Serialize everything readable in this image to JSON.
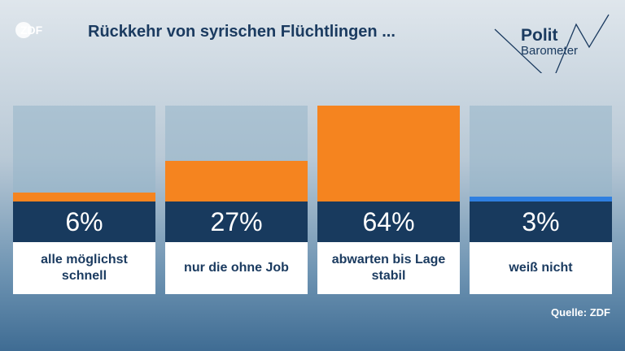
{
  "logo_text": "ZDF",
  "headline": "Rückkehr von syrischen Flüchtlingen ...",
  "brand": {
    "word1": "Polit",
    "word2": "Barometer"
  },
  "source": "Quelle: ZDF",
  "colors": {
    "bar": "#f5841f",
    "bar_small": "#2f7fe0",
    "value_box": "#183a5e",
    "headline": "#1b3b60"
  },
  "chart_data": {
    "type": "bar",
    "categories": [
      "alle möglichst schnell",
      "nur die ohne Job",
      "abwarten bis Lage stabil",
      "weiß nicht"
    ],
    "values": [
      6,
      27,
      64,
      3
    ],
    "value_labels": [
      "6%",
      "27%",
      "64%",
      "3%"
    ],
    "ylim": [
      0,
      64
    ],
    "title": "Rückkehr von syrischen Flüchtlingen ...",
    "xlabel": "",
    "ylabel": "",
    "grid": false
  }
}
